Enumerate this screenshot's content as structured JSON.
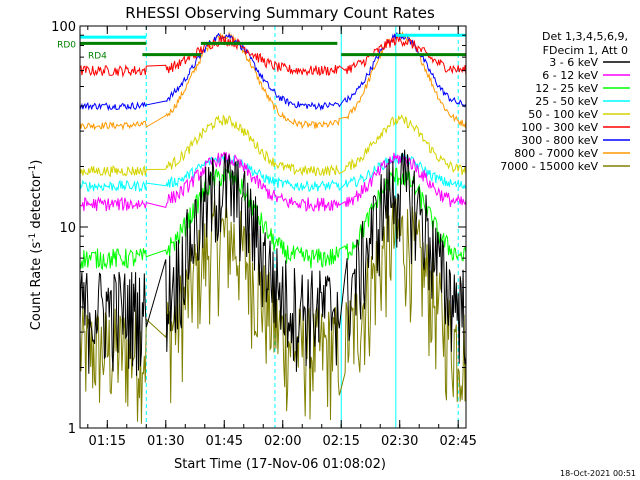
{
  "chart_data": {
    "type": "line",
    "title": "RHESSI Observing Summary Count Rates",
    "xlabel": "Start Time (17-Nov-06 01:08:02)",
    "ylabel_parts": [
      "Count Rate (s",
      "-1",
      " detector",
      "-1",
      ")"
    ],
    "yscale": "log",
    "ylim": [
      1,
      100
    ],
    "y_ticks": [
      "1",
      "10",
      "100"
    ],
    "xlim_minutes": [
      0,
      99
    ],
    "x_ticks": [
      {
        "label": "01:15",
        "minute": 7
      },
      {
        "label": "01:30",
        "minute": 22
      },
      {
        "label": "01:45",
        "minute": 37
      },
      {
        "label": "02:00",
        "minute": 52
      },
      {
        "label": "02:15",
        "minute": 67
      },
      {
        "label": "02:30",
        "minute": 82
      },
      {
        "label": "02:45",
        "minute": 97
      }
    ],
    "legend_header": [
      "Det 1,3,4,5,6,9,",
      "FDecim 1, Att 0"
    ],
    "legend_position": "right",
    "series": [
      {
        "name": "3 - 6 keV",
        "color": "#000000",
        "peak": 16,
        "base": 4,
        "noise": 0.55
      },
      {
        "name": "6 - 12 keV",
        "color": "#ff00ff",
        "peak": 22,
        "base": 13,
        "noise": 0.08
      },
      {
        "name": "12 - 25 keV",
        "color": "#00ff00",
        "peak": 18,
        "base": 7,
        "noise": 0.12
      },
      {
        "name": "25 - 50 keV",
        "color": "#00ffff",
        "peak": 22,
        "base": 16,
        "noise": 0.06
      },
      {
        "name": "50 - 100 keV",
        "color": "#d4d400",
        "peak": 34,
        "base": 19,
        "noise": 0.06
      },
      {
        "name": "100 - 300 keV",
        "color": "#ff0000",
        "peak": 85,
        "base": 60,
        "noise": 0.06
      },
      {
        "name": "300 - 800 keV",
        "color": "#0000ff",
        "peak": 90,
        "base": 40,
        "noise": 0.04
      },
      {
        "name": "800 - 7000 keV",
        "color": "#ff9900",
        "peak": 90,
        "base": 32,
        "noise": 0.04
      },
      {
        "name": "7000 - 15000 keV",
        "color": "#808000",
        "peak": 9,
        "base": 2.5,
        "noise": 0.6
      }
    ],
    "orbit_peaks_minutes": [
      37,
      82
    ],
    "rd0": {
      "label": "RD0",
      "value": 82
    },
    "rd4": {
      "label": "RD4",
      "value": 72
    },
    "vlines_solid_minutes": [
      0,
      67,
      81
    ],
    "vlines_dashed_minutes": [
      17,
      50,
      97
    ],
    "timestamp": "18-Oct-2021 00:51"
  }
}
